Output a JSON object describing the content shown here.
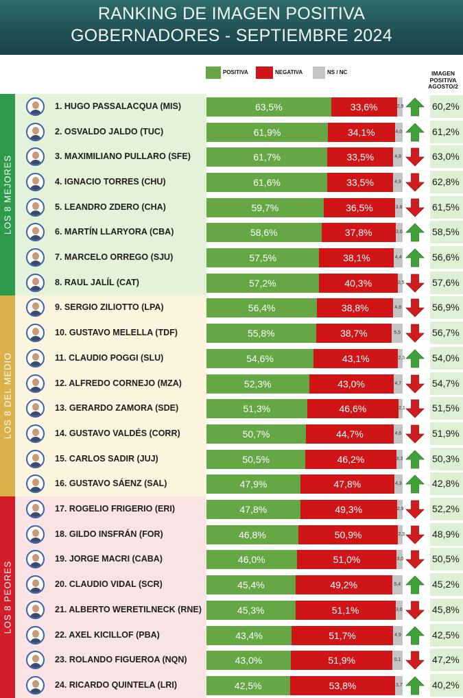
{
  "title": {
    "line1": "RANKING DE IMAGEN POSITIVA",
    "line2": "GOBERNADORES - SEPTIEMBRE 2024"
  },
  "legend": {
    "positive": "POSITIVA",
    "negative": "NEGATIVA",
    "nsnc": "NS / NC"
  },
  "previous_header": [
    "IMAGEN",
    "POSITIVA",
    "AGOSTO/2"
  ],
  "groups": [
    {
      "label": "LOS 8 MEJORES",
      "color": "#2e9a4c",
      "bg": "#e3f2d9"
    },
    {
      "label": "LOS 8 DEL MEDIO",
      "color": "#dbb24a",
      "bg": "#fbf5dd"
    },
    {
      "label": "LOS 8 PEORES",
      "color": "#d21e2a",
      "bg": "#f9e3e4"
    }
  ],
  "colors": {
    "positive": "#64a744",
    "negative": "#d01518",
    "nsnc": "#c4c4c4",
    "arrow_up": "#3fa237",
    "arrow_down": "#cf1c1e"
  },
  "chart_data": {
    "type": "bar",
    "stacked": true,
    "orientation": "horizontal",
    "title": "RANKING DE IMAGEN POSITIVA GOBERNADORES - SEPTIEMBRE 2024",
    "series": [
      {
        "name": "POSITIVA",
        "values": [
          63.5,
          61.9,
          61.7,
          61.6,
          59.7,
          58.6,
          57.5,
          57.2,
          56.4,
          55.8,
          54.6,
          52.3,
          51.3,
          50.7,
          50.5,
          47.9,
          47.8,
          46.8,
          46.0,
          45.4,
          45.3,
          43.4,
          43.0,
          42.5
        ]
      },
      {
        "name": "NEGATIVA",
        "values": [
          33.6,
          34.1,
          33.5,
          33.5,
          36.5,
          37.8,
          38.1,
          40.3,
          38.8,
          38.7,
          43.1,
          43.0,
          46.6,
          44.7,
          46.2,
          47.8,
          49.3,
          50.9,
          51.0,
          49.2,
          51.1,
          51.7,
          51.9,
          53.8
        ]
      },
      {
        "name": "NS / NC",
        "values": [
          2.9,
          4.0,
          4.8,
          4.9,
          3.8,
          3.6,
          4.4,
          2.5,
          4.8,
          5.5,
          2.3,
          4.7,
          2.1,
          4.6,
          3.3,
          4.3,
          2.9,
          2.3,
          3.0,
          5.4,
          3.6,
          4.9,
          5.1,
          3.7
        ]
      }
    ],
    "rows": [
      {
        "rank": "1.",
        "name": "HUGO PASSALACQUA (MIS)",
        "pos": "63,5%",
        "neg": "33,6%",
        "ns": "2,9",
        "trend": "up",
        "prev": "60,2%"
      },
      {
        "rank": "2.",
        "name": "OSVALDO JALDO (TUC)",
        "pos": "61,9%",
        "neg": "34,1%",
        "ns": "4,0",
        "trend": "up",
        "prev": "61,2%"
      },
      {
        "rank": "3.",
        "name": "MAXIMILIANO PULLARO (SFE)",
        "pos": "61,7%",
        "neg": "33,5%",
        "ns": "4,8",
        "trend": "down",
        "prev": "63,0%"
      },
      {
        "rank": "4.",
        "name": "IGNACIO TORRES (CHU)",
        "pos": "61,6%",
        "neg": "33,5%",
        "ns": "4,9",
        "trend": "down",
        "prev": "62,8%"
      },
      {
        "rank": "5.",
        "name": "LEANDRO ZDERO (CHA)",
        "pos": "59,7%",
        "neg": "36,5%",
        "ns": "3,8",
        "trend": "down",
        "prev": "61,5%"
      },
      {
        "rank": "6.",
        "name": "MARTÍN LLARYORA (CBA)",
        "pos": "58,6%",
        "neg": "37,8%",
        "ns": "3,6",
        "trend": "up",
        "prev": "58,5%"
      },
      {
        "rank": "7.",
        "name": "MARCELO ORREGO (SJU)",
        "pos": "57,5%",
        "neg": "38,1%",
        "ns": "4,4",
        "trend": "up",
        "prev": "56,6%"
      },
      {
        "rank": "8.",
        "name": "RAUL JALÍL (CAT)",
        "pos": "57,2%",
        "neg": "40,3%",
        "ns": "2,5",
        "trend": "down",
        "prev": "57,6%"
      },
      {
        "rank": "9.",
        "name": "SERGIO ZILIOTTO (LPA)",
        "pos": "56,4%",
        "neg": "38,8%",
        "ns": "4,8",
        "trend": "down",
        "prev": "56,9%"
      },
      {
        "rank": "10.",
        "name": "GUSTAVO MELELLA (TDF)",
        "pos": "55,8%",
        "neg": "38,7%",
        "ns": "5,5",
        "trend": "down",
        "prev": "56,7%"
      },
      {
        "rank": "11.",
        "name": "CLAUDIO POGGI (SLU)",
        "pos": "54,6%",
        "neg": "43,1%",
        "ns": "2,3",
        "trend": "up",
        "prev": "54,0%"
      },
      {
        "rank": "12.",
        "name": "ALFREDO CORNEJO (MZA)",
        "pos": "52,3%",
        "neg": "43,0%",
        "ns": "4,7",
        "trend": "down",
        "prev": "54,7%"
      },
      {
        "rank": "13.",
        "name": "GERARDO ZAMORA (SDE)",
        "pos": "51,3%",
        "neg": "46,6%",
        "ns": "2,1",
        "trend": "down",
        "prev": "51,5%"
      },
      {
        "rank": "14.",
        "name": "GUSTAVO VALDÉS (CORR)",
        "pos": "50,7%",
        "neg": "44,7%",
        "ns": "4,6",
        "trend": "down",
        "prev": "51,9%"
      },
      {
        "rank": "15.",
        "name": "CARLOS SADIR (JUJ)",
        "pos": "50,5%",
        "neg": "46,2%",
        "ns": "3,3",
        "trend": "up",
        "prev": "50,3%"
      },
      {
        "rank": "16.",
        "name": "GUSTAVO SÁENZ (SAL)",
        "pos": "47,9%",
        "neg": "47,8%",
        "ns": "4,3",
        "trend": "up",
        "prev": "42,8%"
      },
      {
        "rank": "17.",
        "name": "ROGELIO FRIGERIO (ERI)",
        "pos": "47,8%",
        "neg": "49,3%",
        "ns": "2,9",
        "trend": "down",
        "prev": "52,2%"
      },
      {
        "rank": "18.",
        "name": "GILDO INSFRÁN (FOR)",
        "pos": "46,8%",
        "neg": "50,9%",
        "ns": "2,3",
        "trend": "down",
        "prev": "48,9%"
      },
      {
        "rank": "19.",
        "name": "JORGE MACRI (CABA)",
        "pos": "46,0%",
        "neg": "51,0%",
        "ns": "3,0",
        "trend": "down",
        "prev": "50,5%"
      },
      {
        "rank": "20.",
        "name": "CLAUDIO VIDAL (SCR)",
        "pos": "45,4%",
        "neg": "49,2%",
        "ns": "5,4",
        "trend": "up",
        "prev": "45,2%"
      },
      {
        "rank": "21.",
        "name": "ALBERTO WERETILNECK (RNE)",
        "pos": "45,3%",
        "neg": "51,1%",
        "ns": "3,6",
        "trend": "down",
        "prev": "45,8%"
      },
      {
        "rank": "22.",
        "name": "AXEL KICILLOF (PBA)",
        "pos": "43,4%",
        "neg": "51,7%",
        "ns": "4,9",
        "trend": "up",
        "prev": "42,5%"
      },
      {
        "rank": "23.",
        "name": "ROLANDO FIGUEROA (NQN)",
        "pos": "43,0%",
        "neg": "51,9%",
        "ns": "5,1",
        "trend": "down",
        "prev": "47,2%"
      },
      {
        "rank": "24.",
        "name": "RICARDO QUINTELA (LRI)",
        "pos": "42,5%",
        "neg": "53,8%",
        "ns": "3,7",
        "trend": "up",
        "prev": "40,2%"
      }
    ]
  }
}
